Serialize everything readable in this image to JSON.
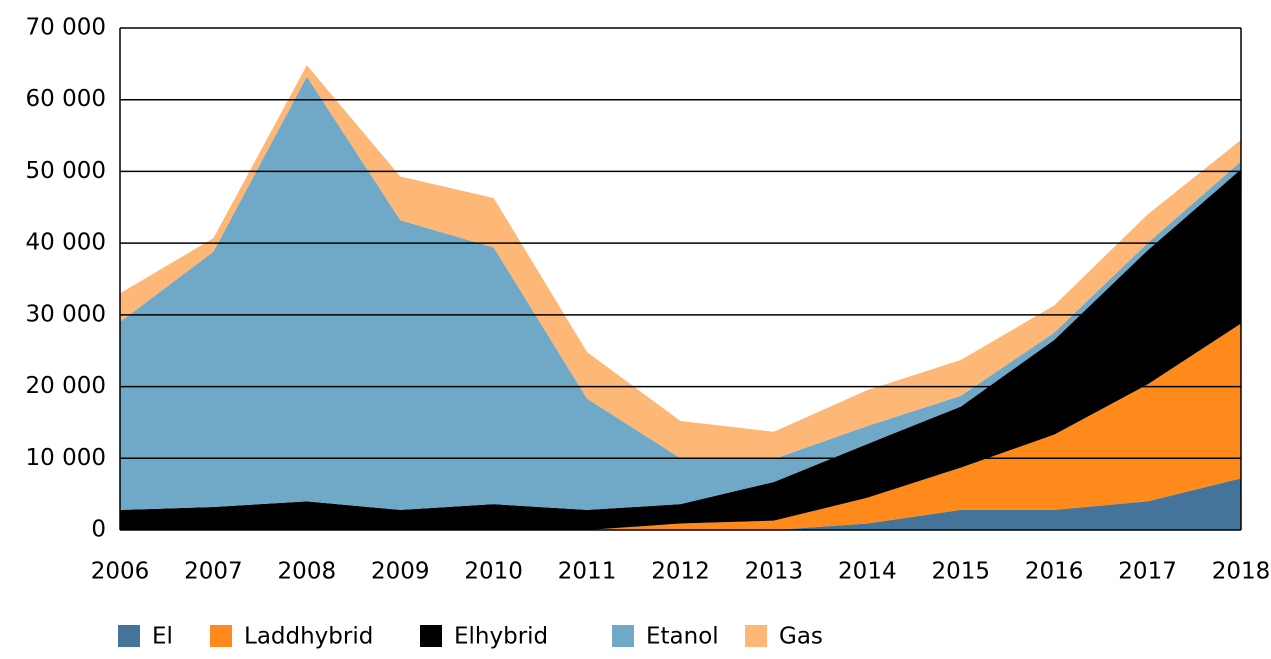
{
  "chart_data": {
    "type": "stacked_area",
    "categories": [
      "2006",
      "2007",
      "2008",
      "2009",
      "2010",
      "2011",
      "2012",
      "2013",
      "2014",
      "2015",
      "2016",
      "2017",
      "2018"
    ],
    "series": [
      {
        "name": "El",
        "color": "#44749a",
        "values": [
          0,
          0,
          0,
          0,
          0,
          0,
          0,
          0,
          900,
          2800,
          2800,
          4000,
          7200
        ]
      },
      {
        "name": "Laddhybrid",
        "color": "#ff8a1c",
        "values": [
          0,
          0,
          0,
          0,
          0,
          0,
          900,
          1300,
          3600,
          5900,
          10500,
          16300,
          21600
        ]
      },
      {
        "name": "Elhybrid",
        "color": "#000000",
        "values": [
          2800,
          3200,
          4000,
          2800,
          3600,
          2800,
          2700,
          5400,
          7500,
          8500,
          13200,
          18700,
          21500
        ]
      },
      {
        "name": "Etanol",
        "color": "#70a8c8",
        "values": [
          26200,
          35600,
          59200,
          40400,
          35800,
          15500,
          6400,
          3200,
          2500,
          1500,
          1000,
          1000,
          1100
        ]
      },
      {
        "name": "Gas",
        "color": "#fdb777",
        "values": [
          4000,
          1900,
          1600,
          6100,
          6900,
          6500,
          5200,
          3800,
          5000,
          5000,
          3800,
          4000,
          3000
        ]
      }
    ],
    "ylim": [
      0,
      70000
    ],
    "yticks": [
      0,
      {
        "value": 10000,
        "label": "10 000"
      },
      {
        "value": 20000,
        "label": "20 000"
      },
      {
        "value": 30000,
        "label": "30 000"
      },
      {
        "value": 40000,
        "label": "40 000"
      },
      {
        "value": 50000,
        "label": "50 000"
      },
      {
        "value": 60000,
        "label": "60 000"
      },
      {
        "value": 70000,
        "label": "70 000"
      }
    ],
    "grid": true
  }
}
